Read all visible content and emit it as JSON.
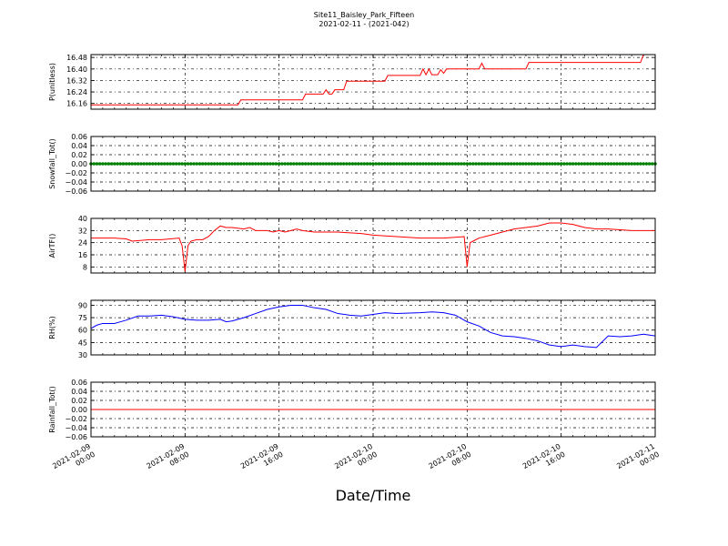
{
  "chart_data": {
    "title": "Site11_Baisley_Park_Fifteen",
    "subtitle": "2021-02-11 - (2021-042)",
    "xlabel": "Date/Time",
    "x_range": [
      "2021-02-09 00:00",
      "2021-02-11 00:00"
    ],
    "x_ticks": [
      {
        "t": "2021-02-09 00:00",
        "label": [
          "2021-02-09",
          "00:00"
        ]
      },
      {
        "t": "2021-02-09 08:00",
        "label": [
          "2021-02-09",
          "08:00"
        ]
      },
      {
        "t": "2021-02-09 16:00",
        "label": [
          "2021-02-09",
          "16:00"
        ]
      },
      {
        "t": "2021-02-10 00:00",
        "label": [
          "2021-02-10",
          "00:00"
        ]
      },
      {
        "t": "2021-02-10 08:00",
        "label": [
          "2021-02-10",
          "08:00"
        ]
      },
      {
        "t": "2021-02-10 16:00",
        "label": [
          "2021-02-10",
          "16:00"
        ]
      },
      {
        "t": "2021-02-11 00:00",
        "label": [
          "2021-02-11",
          "00:00"
        ]
      }
    ],
    "grid": true,
    "panels": [
      {
        "name": "pressure",
        "type": "line",
        "ylabel": "P(unitless)",
        "ylim": [
          16.12,
          16.5
        ],
        "yticks": [
          16.16,
          16.24,
          16.32,
          16.4,
          16.48
        ],
        "ytick_labels": [
          "16.16",
          "16.24",
          "16.32",
          "16.40",
          "16.48"
        ],
        "color": "#ff0000",
        "points": [
          [
            "2021-02-09 00:00",
            16.15
          ],
          [
            "2021-02-09 12:30",
            16.15
          ],
          [
            "2021-02-09 12:45",
            16.185
          ],
          [
            "2021-02-09 18:00",
            16.185
          ],
          [
            "2021-02-09 18:15",
            16.225
          ],
          [
            "2021-02-09 19:45",
            16.225
          ],
          [
            "2021-02-09 20:00",
            16.255
          ],
          [
            "2021-02-09 20:15",
            16.225
          ],
          [
            "2021-02-09 20:30",
            16.225
          ],
          [
            "2021-02-09 20:45",
            16.255
          ],
          [
            "2021-02-09 21:30",
            16.255
          ],
          [
            "2021-02-09 21:45",
            16.315
          ],
          [
            "2021-02-10 01:00",
            16.315
          ],
          [
            "2021-02-10 01:15",
            16.355
          ],
          [
            "2021-02-10 04:00",
            16.355
          ],
          [
            "2021-02-10 04:15",
            16.4
          ],
          [
            "2021-02-10 04:30",
            16.36
          ],
          [
            "2021-02-10 04:45",
            16.4
          ],
          [
            "2021-02-10 05:00",
            16.36
          ],
          [
            "2021-02-10 05:30",
            16.36
          ],
          [
            "2021-02-10 05:45",
            16.395
          ],
          [
            "2021-02-10 06:00",
            16.37
          ],
          [
            "2021-02-10 06:15",
            16.4
          ],
          [
            "2021-02-10 09:00",
            16.4
          ],
          [
            "2021-02-10 09:15",
            16.44
          ],
          [
            "2021-02-10 09:30",
            16.4
          ],
          [
            "2021-02-10 13:00",
            16.4
          ],
          [
            "2021-02-10 13:15",
            16.445
          ],
          [
            "2021-02-10 22:45",
            16.445
          ],
          [
            "2021-02-10 23:00",
            16.5
          ],
          [
            "2021-02-11 00:00",
            16.5
          ]
        ]
      },
      {
        "name": "snowfall",
        "type": "scatter",
        "ylabel": "Snowfall_Tot()",
        "ylim": [
          -0.06,
          0.06
        ],
        "yticks": [
          -0.06,
          -0.04,
          -0.02,
          0.0,
          0.02,
          0.04,
          0.06
        ],
        "ytick_labels": [
          "−0.06",
          "−0.04",
          "−0.02",
          "0.00",
          "0.02",
          "0.04",
          "0.06"
        ],
        "color": "#008000",
        "constant_value": 0.0,
        "interval_minutes": 15
      },
      {
        "name": "airtemp",
        "type": "line",
        "ylabel": "AirTF()",
        "ylim": [
          4,
          40
        ],
        "yticks": [
          8,
          16,
          24,
          32,
          40
        ],
        "ytick_labels": [
          "8",
          "16",
          "24",
          "32",
          "40"
        ],
        "color": "#ff0000",
        "points": [
          [
            "2021-02-09 00:00",
            27
          ],
          [
            "2021-02-09 02:00",
            27
          ],
          [
            "2021-02-09 03:00",
            26.5
          ],
          [
            "2021-02-09 03:30",
            25
          ],
          [
            "2021-02-09 05:00",
            26
          ],
          [
            "2021-02-09 06:00",
            26
          ],
          [
            "2021-02-09 07:30",
            27
          ],
          [
            "2021-02-09 07:45",
            22
          ],
          [
            "2021-02-09 08:00",
            5
          ],
          [
            "2021-02-09 08:15",
            22
          ],
          [
            "2021-02-09 08:30",
            25
          ],
          [
            "2021-02-09 09:00",
            26
          ],
          [
            "2021-02-09 09:30",
            26
          ],
          [
            "2021-02-09 10:00",
            28
          ],
          [
            "2021-02-09 10:30",
            32
          ],
          [
            "2021-02-09 11:00",
            35
          ],
          [
            "2021-02-09 11:30",
            34
          ],
          [
            "2021-02-09 12:00",
            34
          ],
          [
            "2021-02-09 13:00",
            33
          ],
          [
            "2021-02-09 13:30",
            34
          ],
          [
            "2021-02-09 14:00",
            32
          ],
          [
            "2021-02-09 15:00",
            32
          ],
          [
            "2021-02-09 15:30",
            31
          ],
          [
            "2021-02-09 16:00",
            32
          ],
          [
            "2021-02-09 16:30",
            31
          ],
          [
            "2021-02-09 17:00",
            32
          ],
          [
            "2021-02-09 17:30",
            33
          ],
          [
            "2021-02-09 18:00",
            32
          ],
          [
            "2021-02-09 19:00",
            31
          ],
          [
            "2021-02-09 21:00",
            31
          ],
          [
            "2021-02-09 23:00",
            30
          ],
          [
            "2021-02-10 00:00",
            29
          ],
          [
            "2021-02-10 02:00",
            28
          ],
          [
            "2021-02-10 04:00",
            27
          ],
          [
            "2021-02-10 06:00",
            27
          ],
          [
            "2021-02-10 07:45",
            28
          ],
          [
            "2021-02-10 08:00",
            8
          ],
          [
            "2021-02-10 08:15",
            24
          ],
          [
            "2021-02-10 08:30",
            25
          ],
          [
            "2021-02-10 09:00",
            27
          ],
          [
            "2021-02-10 10:00",
            29
          ],
          [
            "2021-02-10 11:00",
            31
          ],
          [
            "2021-02-10 12:00",
            33
          ],
          [
            "2021-02-10 13:00",
            34
          ],
          [
            "2021-02-10 14:00",
            35
          ],
          [
            "2021-02-10 15:00",
            37
          ],
          [
            "2021-02-10 16:00",
            37
          ],
          [
            "2021-02-10 17:00",
            36
          ],
          [
            "2021-02-10 18:00",
            34
          ],
          [
            "2021-02-10 19:00",
            33
          ],
          [
            "2021-02-10 20:00",
            33
          ],
          [
            "2021-02-10 22:00",
            32
          ],
          [
            "2021-02-11 00:00",
            32
          ]
        ]
      },
      {
        "name": "rh",
        "type": "line",
        "ylabel": "RH(%)",
        "ylim": [
          30,
          96
        ],
        "yticks": [
          30,
          45,
          60,
          75,
          90
        ],
        "ytick_labels": [
          "30",
          "45",
          "60",
          "75",
          "90"
        ],
        "color": "#0000ff",
        "points": [
          [
            "2021-02-09 00:00",
            62
          ],
          [
            "2021-02-09 00:30",
            66
          ],
          [
            "2021-02-09 01:00",
            68
          ],
          [
            "2021-02-09 02:00",
            68
          ],
          [
            "2021-02-09 03:00",
            72
          ],
          [
            "2021-02-09 04:00",
            77
          ],
          [
            "2021-02-09 05:00",
            77
          ],
          [
            "2021-02-09 06:00",
            78
          ],
          [
            "2021-02-09 07:00",
            76
          ],
          [
            "2021-02-09 08:00",
            73
          ],
          [
            "2021-02-09 09:00",
            72
          ],
          [
            "2021-02-09 10:00",
            72
          ],
          [
            "2021-02-09 11:00",
            73
          ],
          [
            "2021-02-09 11:30",
            70
          ],
          [
            "2021-02-09 12:00",
            71
          ],
          [
            "2021-02-09 13:00",
            75
          ],
          [
            "2021-02-09 14:00",
            80
          ],
          [
            "2021-02-09 15:00",
            85
          ],
          [
            "2021-02-09 16:00",
            88
          ],
          [
            "2021-02-09 17:00",
            90
          ],
          [
            "2021-02-09 18:00",
            90
          ],
          [
            "2021-02-09 19:00",
            87
          ],
          [
            "2021-02-09 20:00",
            85
          ],
          [
            "2021-02-09 21:00",
            80
          ],
          [
            "2021-02-09 22:00",
            78
          ],
          [
            "2021-02-09 23:00",
            77
          ],
          [
            "2021-02-10 00:00",
            79
          ],
          [
            "2021-02-10 01:00",
            81
          ],
          [
            "2021-02-10 02:00",
            80
          ],
          [
            "2021-02-10 04:00",
            81
          ],
          [
            "2021-02-10 05:00",
            82
          ],
          [
            "2021-02-10 06:00",
            81
          ],
          [
            "2021-02-10 07:00",
            78
          ],
          [
            "2021-02-10 08:00",
            70
          ],
          [
            "2021-02-10 09:00",
            65
          ],
          [
            "2021-02-10 10:00",
            57
          ],
          [
            "2021-02-10 11:00",
            53
          ],
          [
            "2021-02-10 12:00",
            52
          ],
          [
            "2021-02-10 13:00",
            50
          ],
          [
            "2021-02-10 14:00",
            47
          ],
          [
            "2021-02-10 15:00",
            42
          ],
          [
            "2021-02-10 16:00",
            40
          ],
          [
            "2021-02-10 17:00",
            42
          ],
          [
            "2021-02-10 18:00",
            40
          ],
          [
            "2021-02-10 19:00",
            39
          ],
          [
            "2021-02-10 20:00",
            53
          ],
          [
            "2021-02-10 21:00",
            52
          ],
          [
            "2021-02-10 22:00",
            53
          ],
          [
            "2021-02-10 23:00",
            55
          ],
          [
            "2021-02-11 00:00",
            53
          ]
        ]
      },
      {
        "name": "rainfall",
        "type": "line",
        "ylabel": "Rainfall_Tot()",
        "ylim": [
          -0.06,
          0.06
        ],
        "yticks": [
          -0.06,
          -0.04,
          -0.02,
          0.0,
          0.02,
          0.04,
          0.06
        ],
        "ytick_labels": [
          "−0.06",
          "−0.04",
          "−0.02",
          "0.00",
          "0.02",
          "0.04",
          "0.06"
        ],
        "color": "#ff0000",
        "points": [
          [
            "2021-02-09 00:00",
            0.0
          ],
          [
            "2021-02-11 00:00",
            0.0
          ]
        ]
      }
    ]
  }
}
